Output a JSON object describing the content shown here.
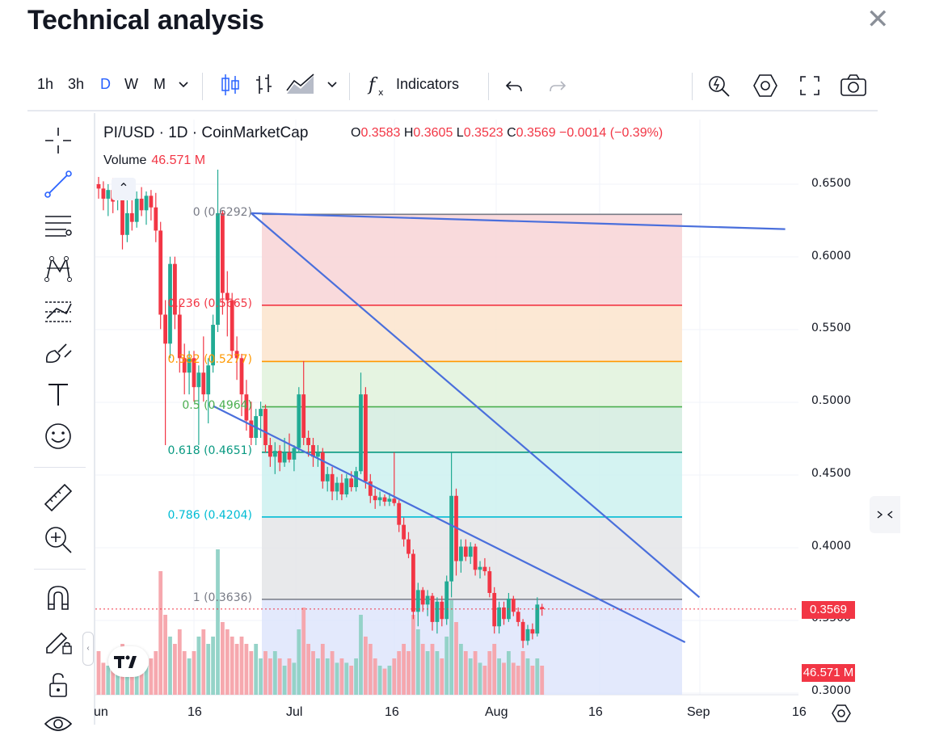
{
  "header": {
    "title": "Technical analysis"
  },
  "toolbar": {
    "intervals": [
      "1h",
      "3h",
      "D",
      "W",
      "M"
    ],
    "active_interval": "D",
    "indicators_label": "Indicators"
  },
  "legend": {
    "symbol": "PI/USD · 1D · CoinMarketCap",
    "o_label": "O",
    "o_value": "0.3583",
    "h_label": "H",
    "h_value": "0.3605",
    "l_label": "L",
    "l_value": "0.3523",
    "c_label": "C",
    "c_value": "0.3569",
    "change": "−0.0014 (−0.39%)",
    "volume_label": "Volume",
    "volume_value": "46.571 M"
  },
  "fib_labels": {
    "l0": "0 (0.6292)",
    "l236": "0.236 (0.5665)",
    "l382": "0.382 (0.5277)",
    "l5": "0.5 (0.4964)",
    "l618": "0.618 (0.4651)",
    "l786": "0.786 (0.4204)",
    "l1": "1 (0.3636)"
  },
  "price_axis": {
    "ticks": [
      "0.6500",
      "0.6000",
      "0.5500",
      "0.5000",
      "0.4500",
      "0.4000",
      "0.3500",
      "0.3000"
    ],
    "last_price": "0.3569",
    "volume_badge": "46.571 M"
  },
  "time_axis": {
    "labels": [
      "un",
      "16",
      "Jul",
      "16",
      "Aug",
      "16",
      "Sep",
      "16"
    ]
  },
  "colors": {
    "up": "#22ab94",
    "down": "#f23645",
    "accent": "#2962ff",
    "trendline": "#4a6fdc"
  },
  "chart_data": {
    "type": "candlestick",
    "symbol": "PI/USD",
    "interval": "1D",
    "y_range": [
      0.3,
      0.66
    ],
    "fibonacci": [
      {
        "level": 0,
        "price": 0.6292,
        "color": "#787b86"
      },
      {
        "level": 0.236,
        "price": 0.5665,
        "color": "#f23645"
      },
      {
        "level": 0.382,
        "price": 0.5277,
        "color": "#ff9800"
      },
      {
        "level": 0.5,
        "price": 0.4964,
        "color": "#4caf50"
      },
      {
        "level": 0.618,
        "price": 0.4651,
        "color": "#089981"
      },
      {
        "level": 0.786,
        "price": 0.4204,
        "color": "#00bcd4"
      },
      {
        "level": 1,
        "price": 0.3636,
        "color": "#787b86"
      }
    ],
    "fib_zone_colors": [
      "#f8d3d6",
      "#fbe4cc",
      "#e0f2dc",
      "#d3ecdf",
      "#ccf1f0",
      "#e4e5e8"
    ],
    "below_fill": "#d9e1fb",
    "trendlines": [
      {
        "from": [
          32,
          0.63
        ],
        "to": [
          144,
          0.619
        ]
      },
      {
        "from": [
          32,
          0.63
        ],
        "to": [
          126,
          0.365
        ]
      },
      {
        "from": [
          24,
          0.497
        ],
        "to": [
          123,
          0.334
        ]
      }
    ],
    "candles": [
      {
        "o": 0.65,
        "h": 0.655,
        "l": 0.64,
        "c": 0.647,
        "v": 0.3
      },
      {
        "o": 0.647,
        "h": 0.652,
        "l": 0.632,
        "c": 0.64,
        "v": 0.22
      },
      {
        "o": 0.64,
        "h": 0.65,
        "l": 0.628,
        "c": 0.646,
        "v": 0.2
      },
      {
        "o": 0.646,
        "h": 0.654,
        "l": 0.63,
        "c": 0.638,
        "v": 0.25
      },
      {
        "o": 0.64,
        "h": 0.652,
        "l": 0.632,
        "c": 0.648,
        "v": 0.18
      },
      {
        "o": 0.648,
        "h": 0.652,
        "l": 0.605,
        "c": 0.615,
        "v": 0.35
      },
      {
        "o": 0.615,
        "h": 0.64,
        "l": 0.61,
        "c": 0.63,
        "v": 0.28
      },
      {
        "o": 0.63,
        "h": 0.642,
        "l": 0.618,
        "c": 0.624,
        "v": 0.2
      },
      {
        "o": 0.624,
        "h": 0.645,
        "l": 0.62,
        "c": 0.64,
        "v": 0.22
      },
      {
        "o": 0.64,
        "h": 0.648,
        "l": 0.628,
        "c": 0.632,
        "v": 0.18
      },
      {
        "o": 0.632,
        "h": 0.645,
        "l": 0.622,
        "c": 0.642,
        "v": 0.2
      },
      {
        "o": 0.642,
        "h": 0.646,
        "l": 0.625,
        "c": 0.634,
        "v": 0.25
      },
      {
        "o": 0.634,
        "h": 0.644,
        "l": 0.61,
        "c": 0.618,
        "v": 0.3
      },
      {
        "o": 0.618,
        "h": 0.624,
        "l": 0.55,
        "c": 0.56,
        "v": 0.85
      },
      {
        "o": 0.56,
        "h": 0.57,
        "l": 0.47,
        "c": 0.54,
        "v": 0.55
      },
      {
        "o": 0.54,
        "h": 0.6,
        "l": 0.53,
        "c": 0.595,
        "v": 0.4
      },
      {
        "o": 0.595,
        "h": 0.6,
        "l": 0.55,
        "c": 0.56,
        "v": 0.35
      },
      {
        "o": 0.56,
        "h": 0.57,
        "l": 0.52,
        "c": 0.53,
        "v": 0.45
      },
      {
        "o": 0.53,
        "h": 0.54,
        "l": 0.505,
        "c": 0.52,
        "v": 0.3
      },
      {
        "o": 0.52,
        "h": 0.535,
        "l": 0.505,
        "c": 0.53,
        "v": 0.25
      },
      {
        "o": 0.53,
        "h": 0.535,
        "l": 0.5,
        "c": 0.51,
        "v": 0.3
      },
      {
        "o": 0.51,
        "h": 0.525,
        "l": 0.47,
        "c": 0.52,
        "v": 0.4
      },
      {
        "o": 0.52,
        "h": 0.545,
        "l": 0.5,
        "c": 0.505,
        "v": 0.45
      },
      {
        "o": 0.505,
        "h": 0.53,
        "l": 0.485,
        "c": 0.525,
        "v": 0.35
      },
      {
        "o": 0.525,
        "h": 0.56,
        "l": 0.52,
        "c": 0.553,
        "v": 0.4
      },
      {
        "o": 0.553,
        "h": 0.66,
        "l": 0.548,
        "c": 0.63,
        "v": 1.0
      },
      {
        "o": 0.63,
        "h": 0.632,
        "l": 0.56,
        "c": 0.575,
        "v": 0.5
      },
      {
        "o": 0.575,
        "h": 0.59,
        "l": 0.545,
        "c": 0.57,
        "v": 0.45
      },
      {
        "o": 0.57,
        "h": 0.575,
        "l": 0.53,
        "c": 0.535,
        "v": 0.4
      },
      {
        "o": 0.535,
        "h": 0.545,
        "l": 0.515,
        "c": 0.53,
        "v": 0.35
      },
      {
        "o": 0.53,
        "h": 0.533,
        "l": 0.49,
        "c": 0.505,
        "v": 0.4
      },
      {
        "o": 0.505,
        "h": 0.515,
        "l": 0.48,
        "c": 0.487,
        "v": 0.35
      },
      {
        "o": 0.487,
        "h": 0.5,
        "l": 0.47,
        "c": 0.475,
        "v": 0.3
      },
      {
        "o": 0.475,
        "h": 0.495,
        "l": 0.47,
        "c": 0.49,
        "v": 0.35
      },
      {
        "o": 0.49,
        "h": 0.5,
        "l": 0.475,
        "c": 0.495,
        "v": 0.25
      },
      {
        "o": 0.495,
        "h": 0.498,
        "l": 0.465,
        "c": 0.47,
        "v": 0.3
      },
      {
        "o": 0.47,
        "h": 0.475,
        "l": 0.455,
        "c": 0.462,
        "v": 0.25
      },
      {
        "o": 0.462,
        "h": 0.472,
        "l": 0.45,
        "c": 0.466,
        "v": 0.3
      },
      {
        "o": 0.466,
        "h": 0.47,
        "l": 0.452,
        "c": 0.458,
        "v": 0.25
      },
      {
        "o": 0.458,
        "h": 0.475,
        "l": 0.455,
        "c": 0.465,
        "v": 0.2
      },
      {
        "o": 0.465,
        "h": 0.478,
        "l": 0.458,
        "c": 0.46,
        "v": 0.25
      },
      {
        "o": 0.46,
        "h": 0.47,
        "l": 0.452,
        "c": 0.468,
        "v": 0.22
      },
      {
        "o": 0.468,
        "h": 0.51,
        "l": 0.465,
        "c": 0.505,
        "v": 0.45
      },
      {
        "o": 0.505,
        "h": 0.528,
        "l": 0.47,
        "c": 0.475,
        "v": 0.6
      },
      {
        "o": 0.475,
        "h": 0.48,
        "l": 0.462,
        "c": 0.47,
        "v": 0.35
      },
      {
        "o": 0.47,
        "h": 0.475,
        "l": 0.455,
        "c": 0.462,
        "v": 0.3
      },
      {
        "o": 0.462,
        "h": 0.47,
        "l": 0.455,
        "c": 0.465,
        "v": 0.25
      },
      {
        "o": 0.465,
        "h": 0.468,
        "l": 0.44,
        "c": 0.445,
        "v": 0.35
      },
      {
        "o": 0.445,
        "h": 0.455,
        "l": 0.438,
        "c": 0.45,
        "v": 0.25
      },
      {
        "o": 0.45,
        "h": 0.455,
        "l": 0.432,
        "c": 0.438,
        "v": 0.3
      },
      {
        "o": 0.438,
        "h": 0.448,
        "l": 0.432,
        "c": 0.444,
        "v": 0.22
      },
      {
        "o": 0.444,
        "h": 0.45,
        "l": 0.432,
        "c": 0.436,
        "v": 0.25
      },
      {
        "o": 0.436,
        "h": 0.45,
        "l": 0.434,
        "c": 0.447,
        "v": 0.22
      },
      {
        "o": 0.447,
        "h": 0.452,
        "l": 0.438,
        "c": 0.441,
        "v": 0.2
      },
      {
        "o": 0.441,
        "h": 0.455,
        "l": 0.438,
        "c": 0.452,
        "v": 0.25
      },
      {
        "o": 0.452,
        "h": 0.52,
        "l": 0.45,
        "c": 0.505,
        "v": 0.55
      },
      {
        "o": 0.505,
        "h": 0.51,
        "l": 0.44,
        "c": 0.445,
        "v": 0.4
      },
      {
        "o": 0.445,
        "h": 0.45,
        "l": 0.43,
        "c": 0.435,
        "v": 0.35
      },
      {
        "o": 0.435,
        "h": 0.44,
        "l": 0.426,
        "c": 0.432,
        "v": 0.25
      },
      {
        "o": 0.432,
        "h": 0.438,
        "l": 0.428,
        "c": 0.434,
        "v": 0.2
      },
      {
        "o": 0.434,
        "h": 0.436,
        "l": 0.428,
        "c": 0.431,
        "v": 0.18
      },
      {
        "o": 0.431,
        "h": 0.437,
        "l": 0.428,
        "c": 0.433,
        "v": 0.2
      },
      {
        "o": 0.433,
        "h": 0.465,
        "l": 0.428,
        "c": 0.43,
        "v": 0.25
      },
      {
        "o": 0.43,
        "h": 0.432,
        "l": 0.41,
        "c": 0.415,
        "v": 0.3
      },
      {
        "o": 0.415,
        "h": 0.42,
        "l": 0.4,
        "c": 0.405,
        "v": 0.35
      },
      {
        "o": 0.405,
        "h": 0.41,
        "l": 0.392,
        "c": 0.395,
        "v": 0.3
      },
      {
        "o": 0.395,
        "h": 0.398,
        "l": 0.35,
        "c": 0.355,
        "v": 0.55
      },
      {
        "o": 0.355,
        "h": 0.375,
        "l": 0.345,
        "c": 0.37,
        "v": 0.45
      },
      {
        "o": 0.37,
        "h": 0.372,
        "l": 0.355,
        "c": 0.36,
        "v": 0.35
      },
      {
        "o": 0.36,
        "h": 0.37,
        "l": 0.352,
        "c": 0.366,
        "v": 0.3
      },
      {
        "o": 0.366,
        "h": 0.368,
        "l": 0.342,
        "c": 0.348,
        "v": 0.35
      },
      {
        "o": 0.348,
        "h": 0.365,
        "l": 0.34,
        "c": 0.362,
        "v": 0.3
      },
      {
        "o": 0.362,
        "h": 0.366,
        "l": 0.345,
        "c": 0.35,
        "v": 0.25
      },
      {
        "o": 0.35,
        "h": 0.38,
        "l": 0.346,
        "c": 0.376,
        "v": 0.4
      },
      {
        "o": 0.376,
        "h": 0.465,
        "l": 0.365,
        "c": 0.435,
        "v": 0.65
      },
      {
        "o": 0.435,
        "h": 0.44,
        "l": 0.38,
        "c": 0.39,
        "v": 0.5
      },
      {
        "o": 0.39,
        "h": 0.405,
        "l": 0.382,
        "c": 0.4,
        "v": 0.35
      },
      {
        "o": 0.4,
        "h": 0.405,
        "l": 0.39,
        "c": 0.393,
        "v": 0.3
      },
      {
        "o": 0.393,
        "h": 0.403,
        "l": 0.388,
        "c": 0.4,
        "v": 0.25
      },
      {
        "o": 0.4,
        "h": 0.402,
        "l": 0.38,
        "c": 0.384,
        "v": 0.3
      },
      {
        "o": 0.384,
        "h": 0.39,
        "l": 0.378,
        "c": 0.386,
        "v": 0.22
      },
      {
        "o": 0.386,
        "h": 0.392,
        "l": 0.38,
        "c": 0.383,
        "v": 0.2
      },
      {
        "o": 0.383,
        "h": 0.386,
        "l": 0.365,
        "c": 0.368,
        "v": 0.3
      },
      {
        "o": 0.368,
        "h": 0.372,
        "l": 0.34,
        "c": 0.345,
        "v": 0.35
      },
      {
        "o": 0.345,
        "h": 0.362,
        "l": 0.34,
        "c": 0.358,
        "v": 0.25
      },
      {
        "o": 0.358,
        "h": 0.362,
        "l": 0.346,
        "c": 0.35,
        "v": 0.22
      },
      {
        "o": 0.35,
        "h": 0.368,
        "l": 0.348,
        "c": 0.364,
        "v": 0.3
      },
      {
        "o": 0.364,
        "h": 0.366,
        "l": 0.352,
        "c": 0.355,
        "v": 0.22
      },
      {
        "o": 0.355,
        "h": 0.358,
        "l": 0.345,
        "c": 0.348,
        "v": 0.2
      },
      {
        "o": 0.348,
        "h": 0.35,
        "l": 0.33,
        "c": 0.335,
        "v": 0.3
      },
      {
        "o": 0.335,
        "h": 0.346,
        "l": 0.332,
        "c": 0.343,
        "v": 0.25
      },
      {
        "o": 0.343,
        "h": 0.347,
        "l": 0.336,
        "c": 0.34,
        "v": 0.2
      },
      {
        "o": 0.34,
        "h": 0.365,
        "l": 0.338,
        "c": 0.36,
        "v": 0.25
      },
      {
        "o": 0.3583,
        "h": 0.3605,
        "l": 0.3523,
        "c": 0.3569,
        "v": 0.2
      }
    ]
  }
}
